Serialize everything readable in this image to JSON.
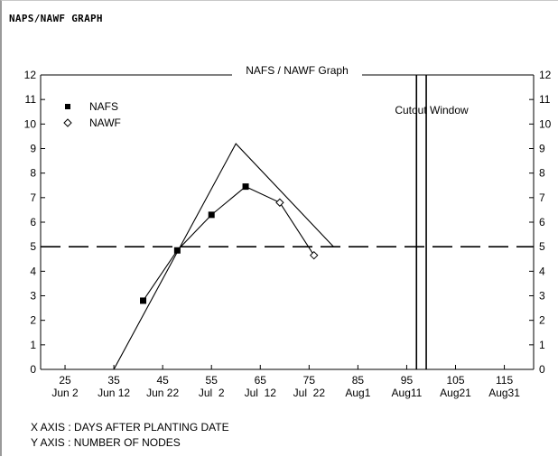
{
  "window": {
    "title": "NAPS/NAWF GRAPH"
  },
  "footer": {
    "x_axis_note": "X AXIS : DAYS AFTER PLANTING DATE",
    "y_axis_note": "Y AXIS : NUMBER OF NODES"
  },
  "chart_data": {
    "type": "line",
    "title": "NAFS / NAWF Graph",
    "xlabel": "",
    "ylabel": "",
    "xlim": [
      20,
      121
    ],
    "ylim": [
      0,
      12
    ],
    "y_ticks": [
      0,
      1,
      2,
      3,
      4,
      5,
      6,
      7,
      8,
      9,
      10,
      11,
      12
    ],
    "x_ticks": [
      {
        "value": 25,
        "day": "25",
        "date": "Jun 2"
      },
      {
        "value": 35,
        "day": "35",
        "date": "Jun 12"
      },
      {
        "value": 45,
        "day": "45",
        "date": "Jun 22"
      },
      {
        "value": 55,
        "day": "55",
        "date": "Jul  2"
      },
      {
        "value": 65,
        "day": "65",
        "date": "Jul  12"
      },
      {
        "value": 75,
        "day": "75",
        "date": "Jul  22"
      },
      {
        "value": 85,
        "day": "85",
        "date": "Aug1"
      },
      {
        "value": 95,
        "day": "95",
        "date": "Aug11"
      },
      {
        "value": 105,
        "day": "105",
        "date": "Aug21"
      },
      {
        "value": 115,
        "day": "115",
        "date": "Aug31"
      }
    ],
    "grid": false,
    "legend": "top-left",
    "series": [
      {
        "name": "NAFS",
        "marker": "filled-square",
        "points": [
          [
            41,
            2.8
          ],
          [
            48,
            4.85
          ],
          [
            55,
            6.3
          ],
          [
            62,
            7.45
          ]
        ]
      },
      {
        "name": "NAWF",
        "marker": "open-diamond",
        "points": [
          [
            62,
            7.45
          ],
          [
            69,
            6.8
          ],
          [
            76,
            4.65
          ]
        ]
      }
    ],
    "reference_curve": [
      [
        35,
        0
      ],
      [
        60,
        9.2
      ],
      [
        80,
        5.0
      ]
    ],
    "threshold_line": {
      "y": 5,
      "style": "dashed"
    },
    "cutout_window": {
      "label": "Cutout Window",
      "x_lines": [
        97,
        99
      ]
    },
    "colors": {
      "line": "#000000",
      "background": "#ffffff"
    }
  }
}
